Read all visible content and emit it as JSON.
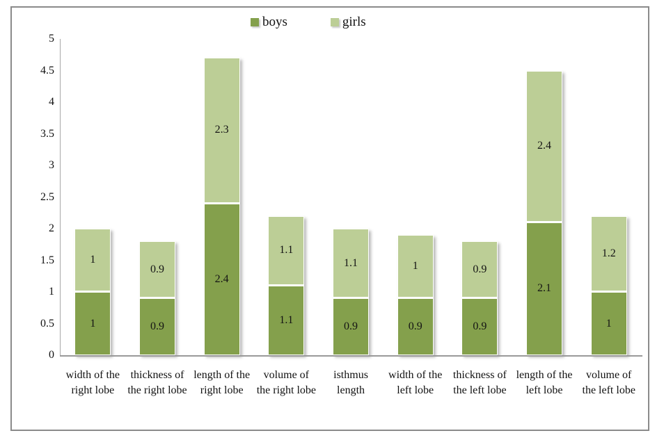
{
  "chart_data": {
    "type": "bar",
    "stacked": true,
    "title": "",
    "xlabel": "",
    "ylabel": "",
    "ylim": [
      0,
      5
    ],
    "ytick_step": 0.5,
    "yticks": [
      "0",
      "0.5",
      "1",
      "1.5",
      "2",
      "2.5",
      "3",
      "3.5",
      "4",
      "4.5",
      "5"
    ],
    "grid": false,
    "legend_position": "top",
    "categories": [
      "width of the\nright lobe",
      "thickness of\nthe right lobe",
      "length of the\nright lobe",
      "volume of\nthe right lobe",
      "isthmus\nlength",
      "width of the\nleft lobe",
      "thickness of\nthe left lobe",
      "length of the\nleft lobe",
      "volume of\nthe left lobe"
    ],
    "series": [
      {
        "name": "boys",
        "color": "#84a04c",
        "values": [
          1,
          0.9,
          2.4,
          1.1,
          0.9,
          0.9,
          0.9,
          2.1,
          1
        ],
        "data_labels": [
          "1",
          "0.9",
          "2.4",
          "1.1",
          "0.9",
          "0.9",
          "0.9",
          "2.1",
          "1"
        ]
      },
      {
        "name": "girls",
        "color": "#bcce96",
        "values": [
          1,
          0.9,
          2.3,
          1.1,
          1.1,
          1,
          0.9,
          2.4,
          1.2
        ],
        "data_labels": [
          "1",
          "0.9",
          "2.3",
          "1.1",
          "1.1",
          "1",
          "0.9",
          "2.4",
          "1.2"
        ]
      }
    ],
    "colors": {
      "boys": "#84a04c",
      "girls": "#bcce96",
      "axis_line": "#a8a8a8",
      "frame_border": "#8a8a8a",
      "label_text": "#141414"
    }
  }
}
